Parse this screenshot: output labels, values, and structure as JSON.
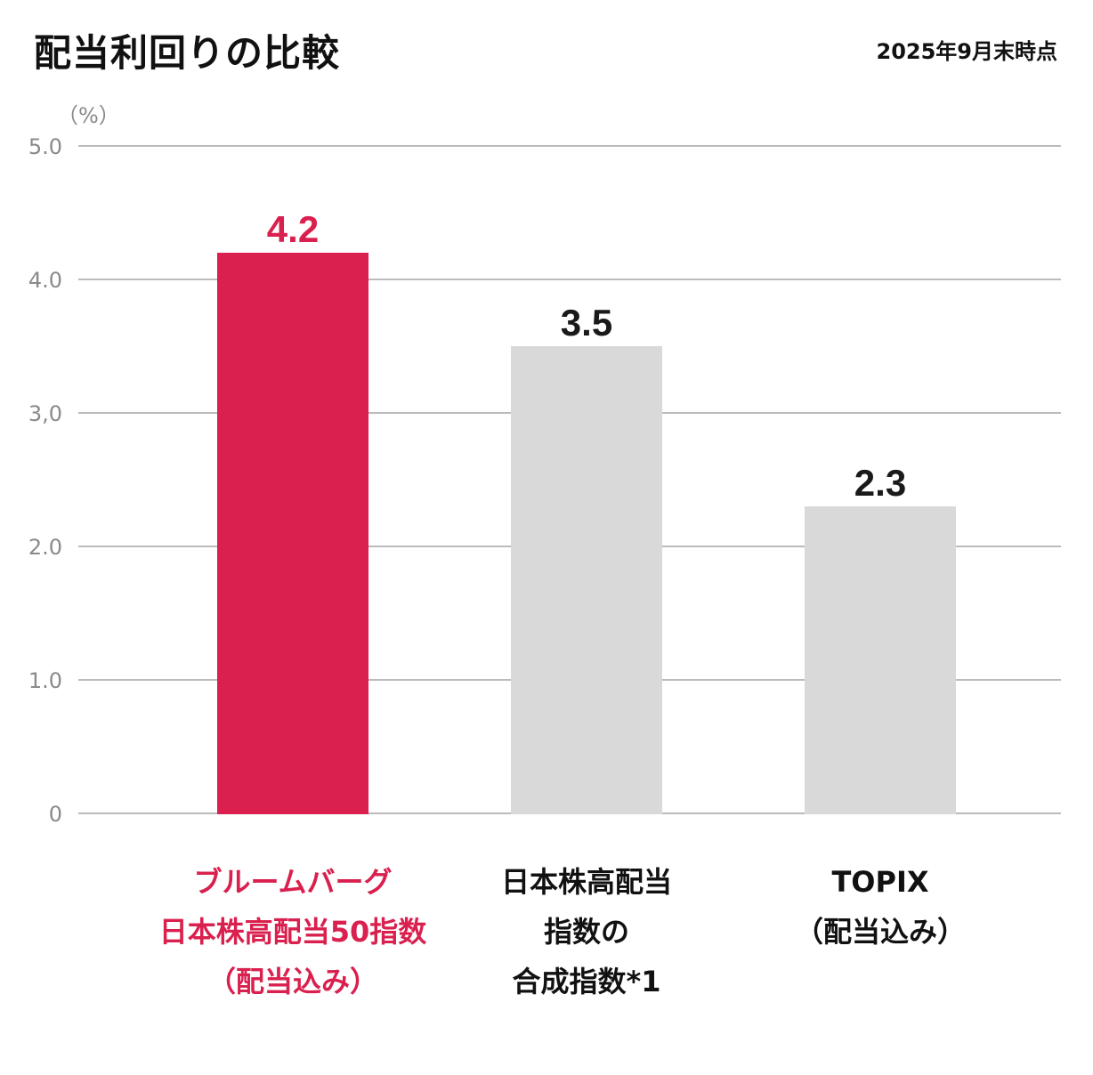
{
  "title": "配当利回りの比較",
  "date_note": "2025年9月末時点",
  "colors": {
    "highlight": "#d9204e",
    "neutral_bar": "#d9d9d9",
    "gridline": "#bbbbbb",
    "tick_text": "#8a8a8a",
    "label_text": "#1a1a1a"
  },
  "chart_data": {
    "type": "bar",
    "title": "配当利回りの比較",
    "subtitle": "2025年9月末時点",
    "ylabel": "（%）",
    "xlabel": "",
    "ylim": [
      0,
      5
    ],
    "grid": true,
    "yticks": [
      {
        "value": 0,
        "label": "0"
      },
      {
        "value": 1,
        "label": "1.0"
      },
      {
        "value": 2,
        "label": "2.0"
      },
      {
        "value": 3,
        "label": "3,0"
      },
      {
        "value": 4,
        "label": "4.0"
      },
      {
        "value": 5,
        "label": "5.0"
      }
    ],
    "categories": [
      {
        "lines": [
          "ブルームバーグ",
          "日本株高配当50指数",
          "（配当込み）"
        ],
        "highlight": true
      },
      {
        "lines": [
          "日本株高配当",
          "指数の",
          "合成指数*1"
        ],
        "highlight": false
      },
      {
        "lines": [
          "TOPIX",
          "（配当込み）"
        ],
        "highlight": false
      }
    ],
    "values": [
      4.2,
      3.5,
      2.3
    ],
    "value_labels": [
      "4.2",
      "3.5",
      "2.3"
    ]
  }
}
